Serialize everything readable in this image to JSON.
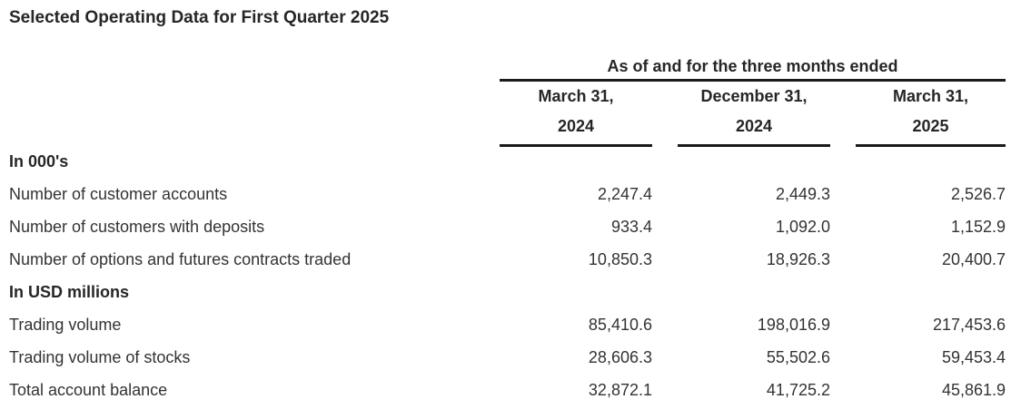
{
  "title": "Selected Operating Data for First Quarter 2025",
  "colors": {
    "text": "#333333",
    "heading_text": "#262626",
    "rule_line": "#1a1a1a",
    "background": "#ffffff"
  },
  "table": {
    "span_header": "As of and for the three months ended",
    "columns": [
      {
        "line1": "March 31,",
        "line2": "2024"
      },
      {
        "line1": "December 31,",
        "line2": "2024"
      },
      {
        "line1": "March 31,",
        "line2": "2025"
      }
    ],
    "rows": [
      {
        "label": "In 000's",
        "type": "section",
        "values": [
          "",
          "",
          ""
        ]
      },
      {
        "label": "Number of customer accounts",
        "type": "data",
        "values": [
          "2,247.4",
          "2,449.3",
          "2,526.7"
        ]
      },
      {
        "label": "Number of customers with deposits",
        "type": "data",
        "values": [
          "933.4",
          "1,092.0",
          "1,152.9"
        ]
      },
      {
        "label": "Number of options and futures contracts traded",
        "type": "data",
        "values": [
          "10,850.3",
          "18,926.3",
          "20,400.7"
        ]
      },
      {
        "label": "In USD millions",
        "type": "section",
        "values": [
          "",
          "",
          ""
        ]
      },
      {
        "label": "Trading volume",
        "type": "data",
        "values": [
          "85,410.6",
          "198,016.9",
          "217,453.6"
        ]
      },
      {
        "label": "Trading volume of stocks",
        "type": "data",
        "values": [
          "28,606.3",
          "55,502.6",
          "59,453.4"
        ]
      },
      {
        "label": "Total account balance",
        "type": "data",
        "values": [
          "32,872.1",
          "41,725.2",
          "45,861.9"
        ]
      }
    ]
  },
  "chart_data": {
    "type": "table",
    "title": "Selected Operating Data for First Quarter 2025",
    "group_header": "As of and for the three months ended",
    "columns": [
      "March 31, 2024",
      "December 31, 2024",
      "March 31, 2025"
    ],
    "sections": [
      {
        "name": "In 000's",
        "rows": [
          {
            "label": "Number of customer accounts",
            "values": [
              2247.4,
              2449.3,
              2526.7
            ]
          },
          {
            "label": "Number of customers with deposits",
            "values": [
              933.4,
              1092.0,
              1152.9
            ]
          },
          {
            "label": "Number of options and futures contracts traded",
            "values": [
              10850.3,
              18926.3,
              20400.7
            ]
          }
        ]
      },
      {
        "name": "In USD millions",
        "rows": [
          {
            "label": "Trading volume",
            "values": [
              85410.6,
              198016.9,
              217453.6
            ]
          },
          {
            "label": "Trading volume of stocks",
            "values": [
              28606.3,
              55502.6,
              59453.4
            ]
          },
          {
            "label": "Total account balance",
            "values": [
              32872.1,
              41725.2,
              45861.9
            ]
          }
        ]
      }
    ]
  }
}
